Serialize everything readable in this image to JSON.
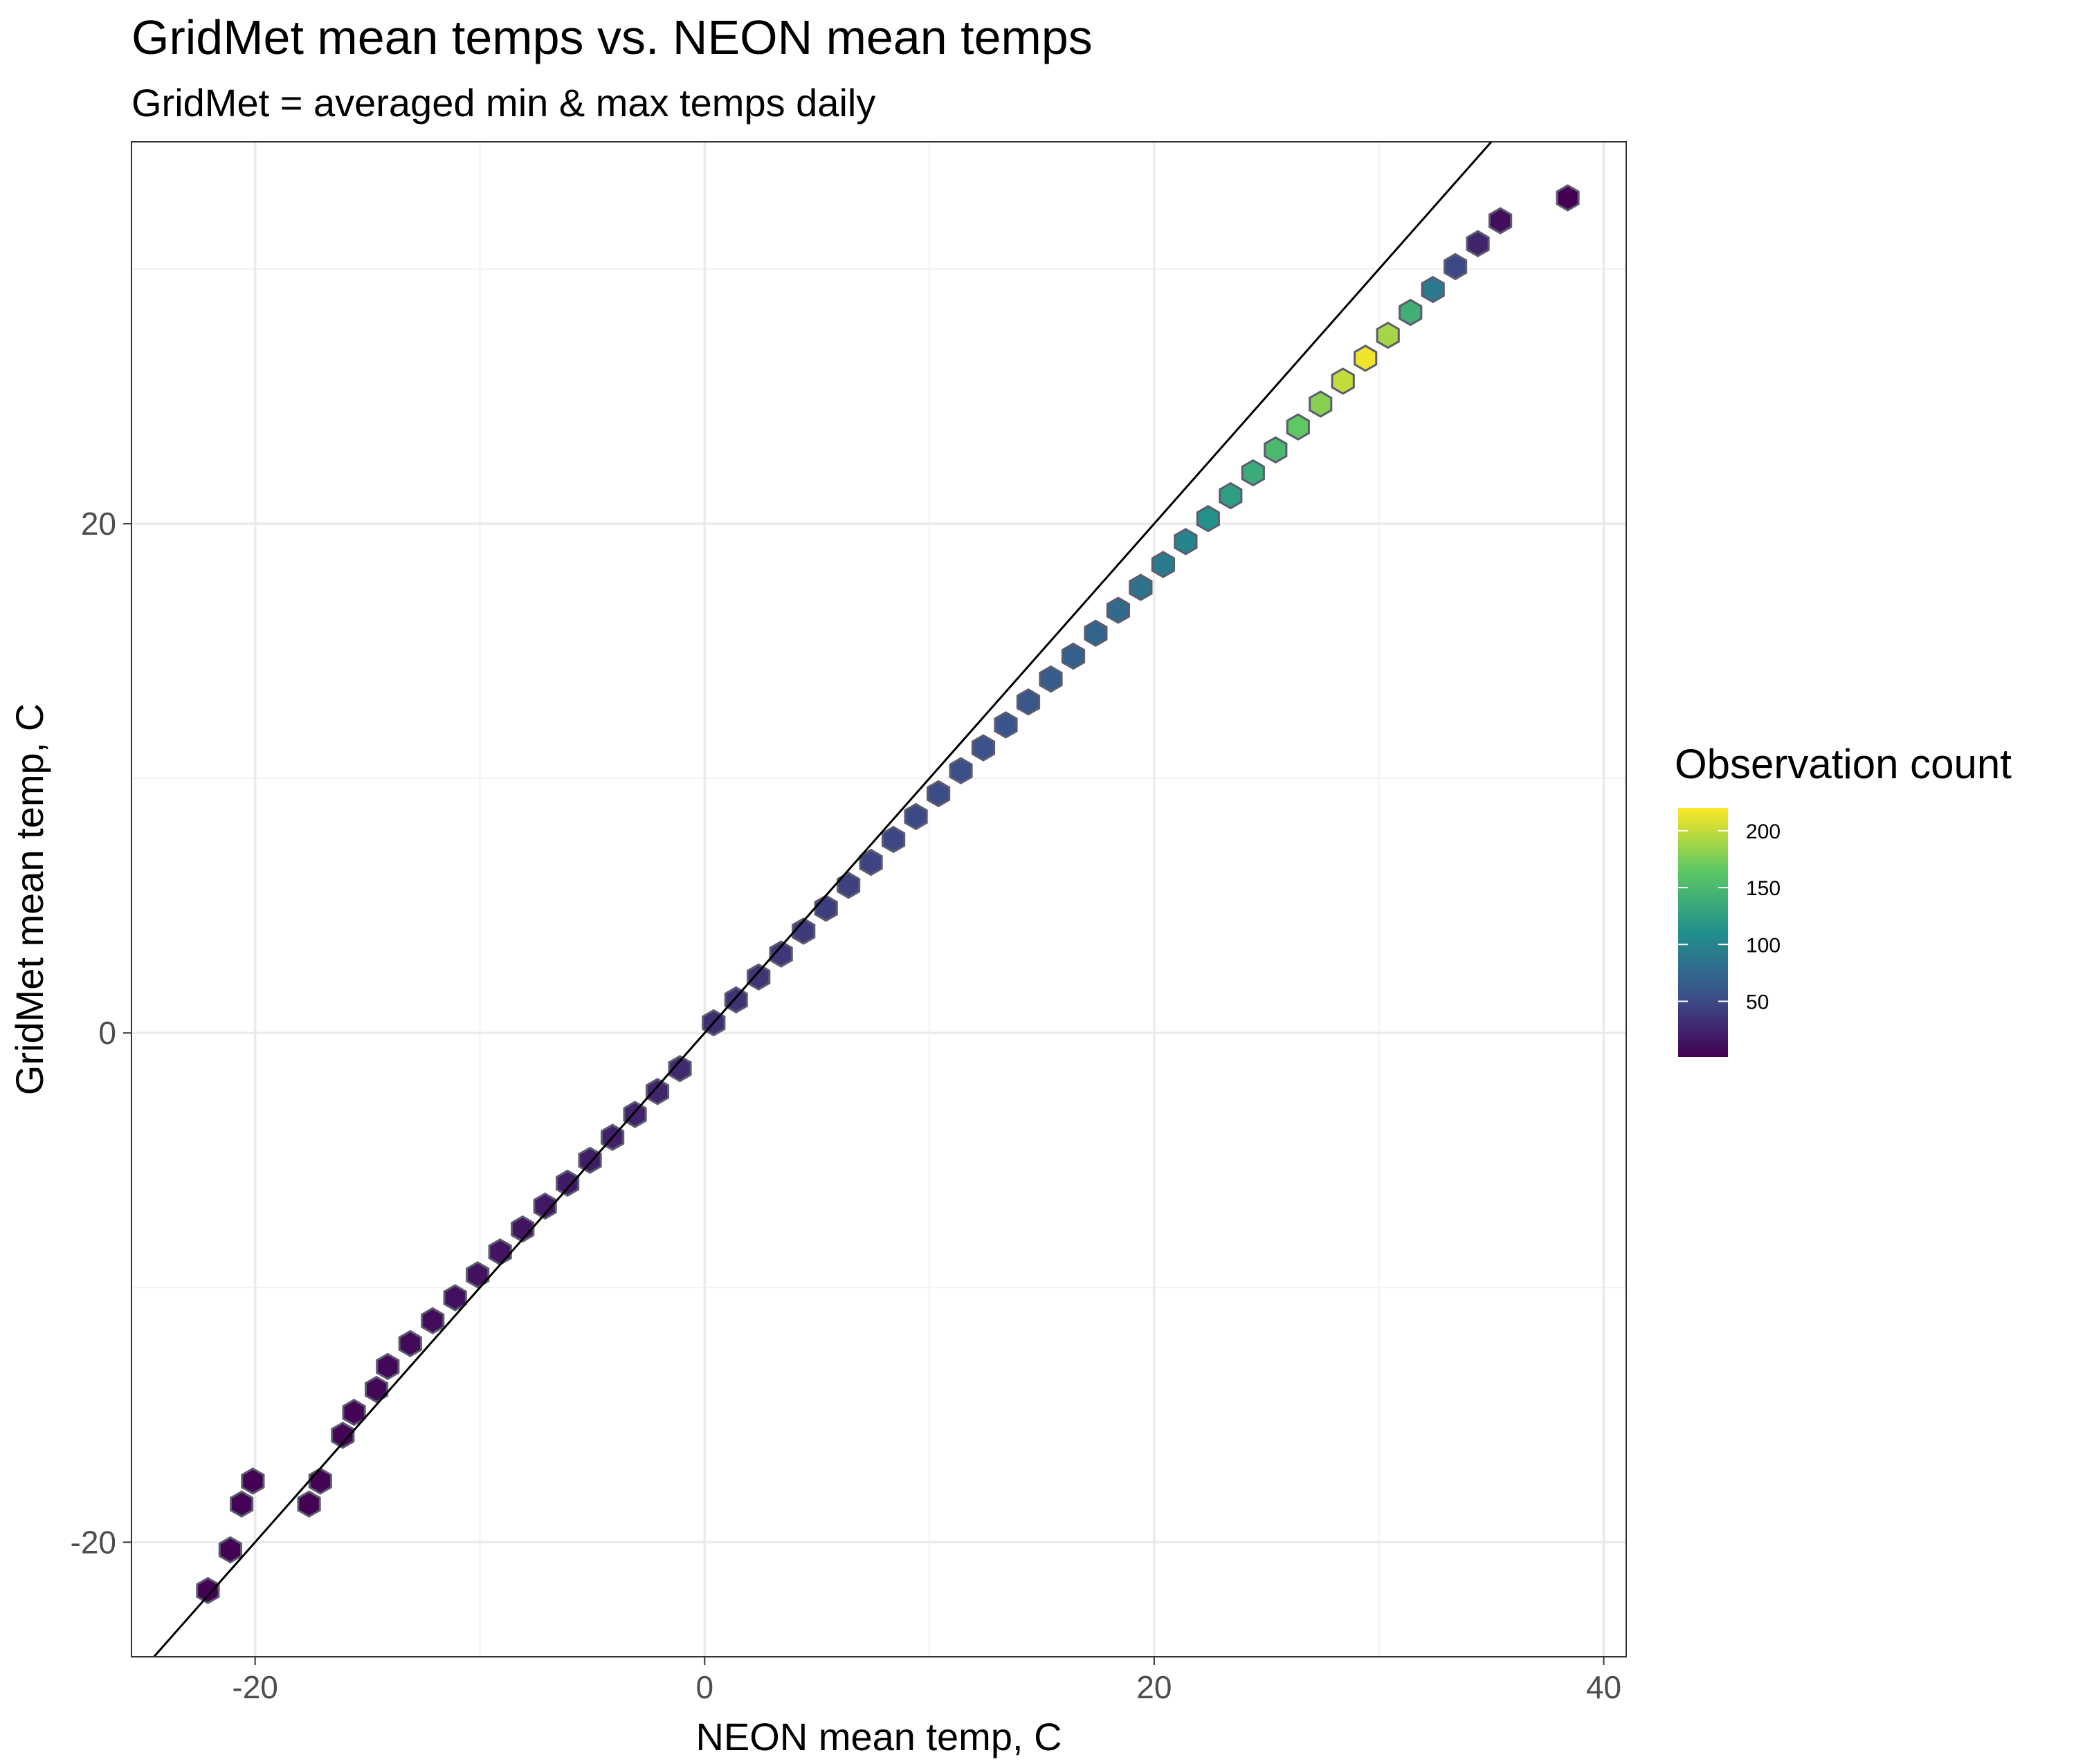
{
  "chart_data": {
    "type": "hexbin",
    "title": "GridMet mean temps vs. NEON mean temps",
    "subtitle": "GridMet = averaged min & max temps daily",
    "xlabel": "NEON mean temp, C",
    "ylabel": "GridMet mean temp, C",
    "xlim": [
      -25.5,
      41
    ],
    "ylim": [
      -24.5,
      35
    ],
    "x_ticks": [
      -20,
      0,
      20,
      40
    ],
    "y_ticks": [
      -20,
      0,
      20
    ],
    "x_tick_labels": [
      "-20",
      "0",
      "20",
      "40"
    ],
    "y_tick_labels": [
      "-20",
      "0",
      "20"
    ],
    "grid": true,
    "reference_line": {
      "type": "identity",
      "slope": 1,
      "intercept": 0
    },
    "legend": {
      "title": "Observation count",
      "position": "right",
      "breaks": [
        50,
        100,
        150,
        200
      ],
      "labels": [
        "50",
        "100",
        "150",
        "200"
      ],
      "range": [
        1,
        220
      ],
      "colors": [
        "#440154",
        "#3b528b",
        "#21908c",
        "#5dc863",
        "#fde725"
      ]
    },
    "bins": [
      {
        "x": -22.1,
        "y": -21.9,
        "count": 2
      },
      {
        "x": -21.1,
        "y": -20.3,
        "count": 2
      },
      {
        "x": -20.6,
        "y": -18.5,
        "count": 3
      },
      {
        "x": -20.1,
        "y": -17.6,
        "count": 2
      },
      {
        "x": -17.6,
        "y": -18.5,
        "count": 2
      },
      {
        "x": -17.1,
        "y": -17.6,
        "count": 3
      },
      {
        "x": -16.1,
        "y": -15.8,
        "count": 4
      },
      {
        "x": -15.6,
        "y": -14.9,
        "count": 4
      },
      {
        "x": -14.6,
        "y": -14.0,
        "count": 5
      },
      {
        "x": -14.1,
        "y": -13.1,
        "count": 6
      },
      {
        "x": -13.1,
        "y": -12.2,
        "count": 7
      },
      {
        "x": -12.1,
        "y": -11.3,
        "count": 9
      },
      {
        "x": -11.1,
        "y": -10.4,
        "count": 11
      },
      {
        "x": -10.1,
        "y": -9.5,
        "count": 12
      },
      {
        "x": -9.1,
        "y": -8.6,
        "count": 14
      },
      {
        "x": -8.1,
        "y": -7.7,
        "count": 14
      },
      {
        "x": -7.1,
        "y": -6.8,
        "count": 16
      },
      {
        "x": -6.1,
        "y": -5.9,
        "count": 18
      },
      {
        "x": -5.1,
        "y": -5.0,
        "count": 20
      },
      {
        "x": -4.1,
        "y": -4.1,
        "count": 22
      },
      {
        "x": -3.1,
        "y": -3.2,
        "count": 24
      },
      {
        "x": -2.1,
        "y": -2.3,
        "count": 26
      },
      {
        "x": -1.1,
        "y": -1.4,
        "count": 28
      },
      {
        "x": 0.4,
        "y": 0.4,
        "count": 30
      },
      {
        "x": 1.4,
        "y": 1.3,
        "count": 34
      },
      {
        "x": 2.4,
        "y": 2.2,
        "count": 36
      },
      {
        "x": 3.4,
        "y": 3.1,
        "count": 38
      },
      {
        "x": 4.4,
        "y": 4.0,
        "count": 40
      },
      {
        "x": 5.4,
        "y": 4.9,
        "count": 42
      },
      {
        "x": 6.4,
        "y": 5.8,
        "count": 44
      },
      {
        "x": 7.4,
        "y": 6.7,
        "count": 46
      },
      {
        "x": 8.4,
        "y": 7.6,
        "count": 48
      },
      {
        "x": 9.4,
        "y": 8.5,
        "count": 50
      },
      {
        "x": 10.4,
        "y": 9.4,
        "count": 52
      },
      {
        "x": 11.4,
        "y": 10.3,
        "count": 54
      },
      {
        "x": 12.4,
        "y": 11.2,
        "count": 56
      },
      {
        "x": 13.4,
        "y": 12.1,
        "count": 58
      },
      {
        "x": 14.4,
        "y": 13.0,
        "count": 60
      },
      {
        "x": 15.4,
        "y": 13.9,
        "count": 64
      },
      {
        "x": 16.4,
        "y": 14.8,
        "count": 68
      },
      {
        "x": 17.4,
        "y": 15.7,
        "count": 72
      },
      {
        "x": 18.4,
        "y": 16.6,
        "count": 78
      },
      {
        "x": 19.4,
        "y": 17.5,
        "count": 84
      },
      {
        "x": 20.4,
        "y": 18.4,
        "count": 92
      },
      {
        "x": 21.4,
        "y": 19.3,
        "count": 100
      },
      {
        "x": 22.4,
        "y": 20.2,
        "count": 112
      },
      {
        "x": 23.4,
        "y": 21.1,
        "count": 124
      },
      {
        "x": 24.4,
        "y": 22.0,
        "count": 136
      },
      {
        "x": 25.4,
        "y": 22.9,
        "count": 150
      },
      {
        "x": 26.4,
        "y": 23.8,
        "count": 166
      },
      {
        "x": 27.4,
        "y": 24.7,
        "count": 180
      },
      {
        "x": 28.4,
        "y": 25.6,
        "count": 200
      },
      {
        "x": 29.4,
        "y": 26.5,
        "count": 215
      },
      {
        "x": 30.4,
        "y": 27.4,
        "count": 190
      },
      {
        "x": 31.4,
        "y": 28.3,
        "count": 140
      },
      {
        "x": 32.4,
        "y": 29.2,
        "count": 90
      },
      {
        "x": 33.4,
        "y": 30.1,
        "count": 50
      },
      {
        "x": 34.4,
        "y": 31.0,
        "count": 25
      },
      {
        "x": 35.4,
        "y": 31.9,
        "count": 10
      },
      {
        "x": 38.4,
        "y": 32.8,
        "count": 1
      }
    ]
  }
}
